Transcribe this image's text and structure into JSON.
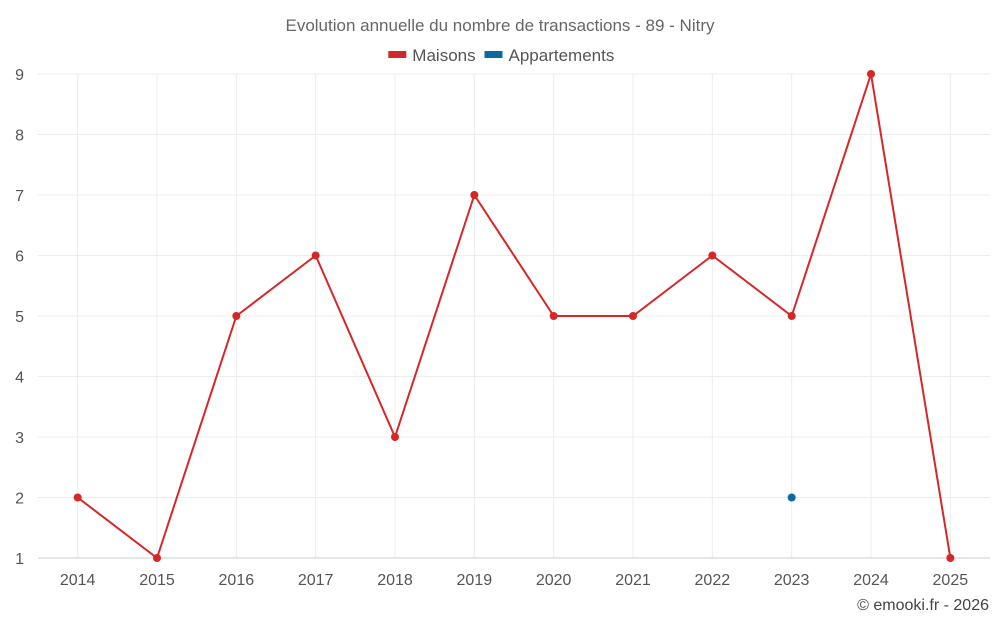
{
  "chart_data": {
    "type": "line",
    "title": "Evolution annuelle du nombre de transactions - 89 - Nitry",
    "categories": [
      "2014",
      "2015",
      "2016",
      "2017",
      "2018",
      "2019",
      "2020",
      "2021",
      "2022",
      "2023",
      "2024",
      "2025"
    ],
    "series": [
      {
        "name": "Maisons",
        "color": "#d62728",
        "values": [
          2,
          1,
          5,
          6,
          3,
          7,
          5,
          5,
          6,
          5,
          9,
          1
        ]
      },
      {
        "name": "Appartements",
        "color": "#0a6aa1",
        "values": [
          null,
          null,
          null,
          null,
          null,
          null,
          null,
          null,
          null,
          2,
          null,
          null
        ]
      }
    ],
    "ylim": [
      1,
      9
    ],
    "yticks": [
      "1",
      "2",
      "3",
      "4",
      "5",
      "6",
      "7",
      "8",
      "9"
    ],
    "xlabel": "",
    "ylabel": "",
    "grid": true,
    "legend_position": "top-center"
  },
  "credit": "© emooki.fr - 2026"
}
